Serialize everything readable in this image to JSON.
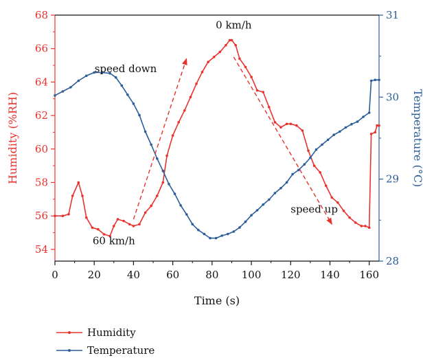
{
  "chart_data": {
    "type": "line",
    "xlabel": "Time (s)",
    "ylabel_left": "Humidity (%RH)",
    "ylabel_right": "Temperature (°C)",
    "xlim": [
      0,
      165
    ],
    "ylim_left": [
      53.3,
      68
    ],
    "ylim_right": [
      28,
      31
    ],
    "x_ticks": [
      "0",
      "20",
      "40",
      "60",
      "80",
      "100",
      "120",
      "140",
      "160"
    ],
    "y_left_ticks": [
      "54",
      "56",
      "58",
      "60",
      "62",
      "64",
      "66",
      "68"
    ],
    "y_right_ticks": [
      "28",
      "29",
      "30",
      "31"
    ],
    "colors": {
      "humidity": "#e8322d",
      "temperature": "#2a5d9a",
      "arrow": "#e8322d"
    },
    "series": [
      {
        "name": "Humidity",
        "axis": "left",
        "x": [
          0,
          4,
          7,
          9,
          12,
          14,
          16,
          19,
          22,
          25,
          28,
          30,
          32,
          35,
          38,
          40,
          43,
          46,
          49,
          52,
          55,
          57,
          60,
          63,
          66,
          69,
          72,
          75,
          78,
          81,
          84,
          87,
          89,
          90,
          92,
          94,
          97,
          100,
          103,
          106,
          109,
          112,
          115,
          118,
          120,
          123,
          126,
          129,
          132,
          135,
          138,
          141,
          144,
          147,
          150,
          153,
          156,
          158,
          160,
          161,
          163,
          164,
          165
        ],
        "values": [
          56.0,
          56.0,
          56.1,
          57.2,
          58.0,
          57.2,
          55.9,
          55.3,
          55.2,
          54.9,
          54.8,
          55.4,
          55.8,
          55.7,
          55.5,
          55.4,
          55.5,
          56.2,
          56.6,
          57.2,
          58.0,
          59.6,
          60.8,
          61.6,
          62.3,
          63.1,
          63.9,
          64.6,
          65.2,
          65.5,
          65.8,
          66.2,
          66.5,
          66.5,
          66.2,
          65.4,
          64.9,
          64.3,
          63.5,
          63.4,
          62.5,
          61.6,
          61.3,
          61.5,
          61.5,
          61.4,
          61.1,
          59.9,
          59.0,
          58.6,
          57.8,
          57.1,
          56.8,
          56.3,
          55.9,
          55.6,
          55.4,
          55.4,
          55.3,
          60.9,
          61.0,
          61.4,
          61.4
        ]
      },
      {
        "name": "Temperature",
        "axis": "right",
        "x": [
          0,
          4,
          8,
          12,
          16,
          20,
          24,
          28,
          31,
          34,
          37,
          40,
          43,
          46,
          49,
          52,
          55,
          58,
          61,
          64,
          67,
          70,
          73,
          76,
          79,
          82,
          85,
          88,
          91,
          94,
          97,
          100,
          103,
          106,
          109,
          112,
          115,
          118,
          121,
          124,
          127,
          130,
          133,
          136,
          139,
          142,
          145,
          148,
          151,
          154,
          157,
          160,
          161,
          163,
          165
        ],
        "values": [
          30.02,
          30.07,
          30.12,
          30.2,
          30.26,
          30.3,
          30.3,
          30.29,
          30.24,
          30.14,
          30.03,
          29.92,
          29.78,
          29.58,
          29.42,
          29.25,
          29.1,
          28.94,
          28.82,
          28.68,
          28.57,
          28.45,
          28.38,
          28.33,
          28.28,
          28.28,
          28.31,
          28.33,
          28.36,
          28.41,
          28.48,
          28.56,
          28.62,
          28.69,
          28.75,
          28.83,
          28.89,
          28.96,
          29.06,
          29.11,
          29.18,
          29.26,
          29.36,
          29.42,
          29.48,
          29.54,
          29.58,
          29.63,
          29.67,
          29.7,
          29.76,
          29.81,
          30.2,
          30.21,
          30.21
        ]
      }
    ],
    "annotations": [
      {
        "text": "0 km/h",
        "x": 91,
        "y": 67.2
      },
      {
        "text": "speed down",
        "x": 36,
        "y": 64.6
      },
      {
        "text": "60 km/h",
        "x": 30,
        "y": 54.3
      },
      {
        "text": "speed up",
        "x": 132,
        "y": 56.2
      }
    ],
    "arrows": [
      {
        "from": [
          40,
          55.8
        ],
        "to": [
          67,
          65.4
        ]
      },
      {
        "from": [
          91,
          65.5
        ],
        "to": [
          141,
          55.5
        ]
      }
    ],
    "legend": {
      "placement": "bottom-left",
      "entries": [
        "Humidity",
        "Temperature"
      ]
    }
  }
}
